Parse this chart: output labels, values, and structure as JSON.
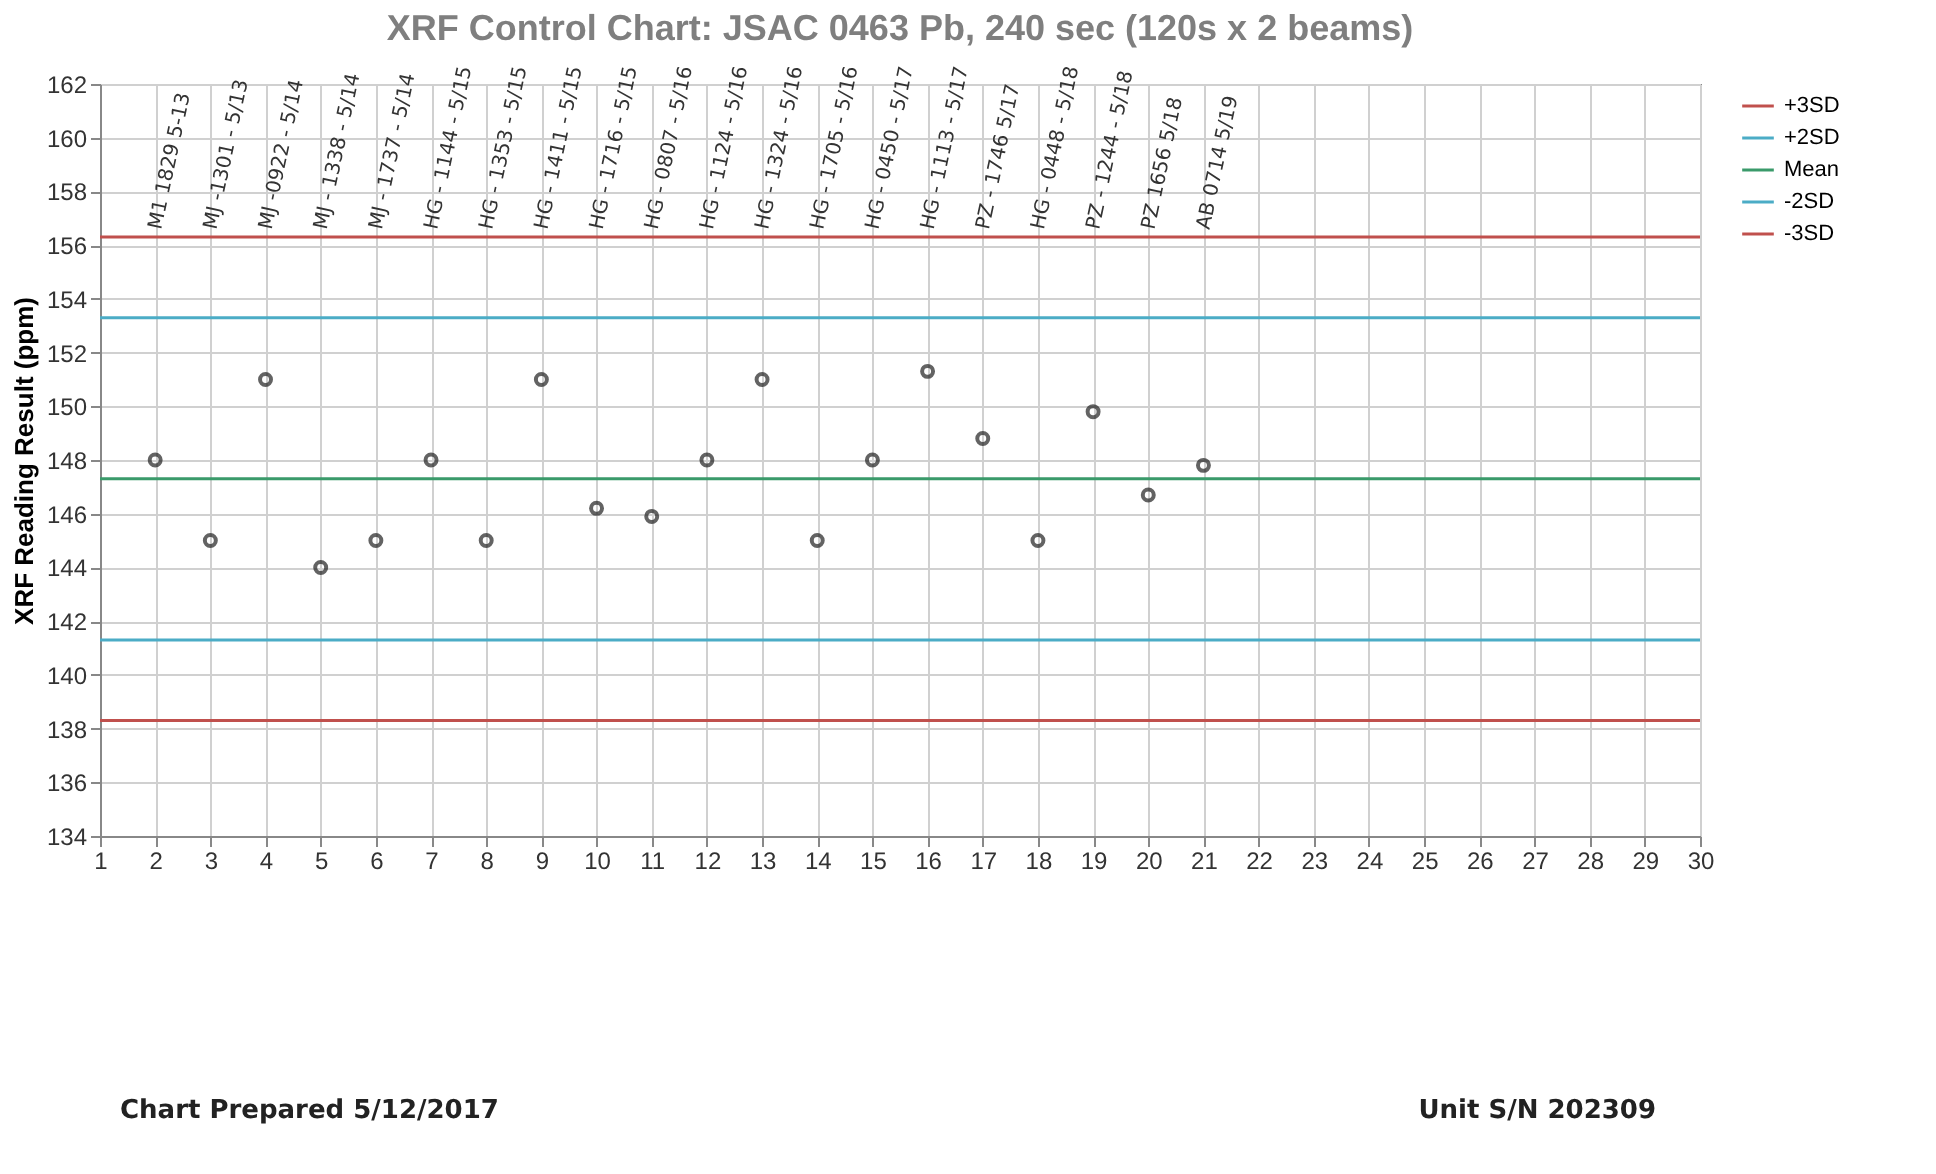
{
  "chart_data": {
    "type": "scatter",
    "title": "XRF Control Chart: JSAC 0463 Pb, 240 sec (120s x 2 beams)",
    "ylabel": "XRF Reading Result  (ppm)",
    "x": [
      2,
      3,
      4,
      5,
      6,
      7,
      8,
      9,
      10,
      11,
      12,
      13,
      14,
      15,
      16,
      17,
      18,
      19,
      20,
      21
    ],
    "series": [
      {
        "color": "#222222",
        "values": [
          148.0,
          145.0,
          151.0,
          144.0,
          145.0,
          148.0,
          145.0,
          151.0,
          146.2,
          145.9,
          148.0,
          151.0,
          145.0,
          148.0,
          151.3,
          148.8,
          145.0,
          149.8,
          146.7,
          147.8
        ]
      }
    ],
    "ref_lines": [
      {
        "axis": "y",
        "value": 156.3,
        "label": "+3SD",
        "color": "#c0504d"
      },
      {
        "axis": "y",
        "value": 153.3,
        "label": "+2SD",
        "color": "#4bacc6"
      },
      {
        "axis": "y",
        "value": 147.3,
        "label": "Mean",
        "color": "#3a9a6a"
      },
      {
        "axis": "y",
        "value": 141.3,
        "label": "-2SD",
        "color": "#4bacc6"
      },
      {
        "axis": "y",
        "value": 138.3,
        "label": "-3SD",
        "color": "#c0504d"
      }
    ],
    "xlim": [
      1,
      30
    ],
    "xticks": [
      1,
      2,
      3,
      4,
      5,
      6,
      7,
      8,
      9,
      10,
      11,
      12,
      13,
      14,
      15,
      16,
      17,
      18,
      19,
      20,
      21,
      22,
      23,
      24,
      25,
      26,
      27,
      28,
      29,
      30
    ],
    "ylim": [
      134,
      162
    ],
    "yticks": [
      134,
      136,
      138,
      140,
      142,
      144,
      146,
      148,
      150,
      152,
      154,
      156,
      158,
      160,
      162
    ],
    "grid": true,
    "legend": "right",
    "marker": "circle",
    "annotations": [
      {
        "text": "M1 1829 5-13",
        "x": 2,
        "y": 156.6
      },
      {
        "text": "MJ -1301 - 5/13",
        "x": 3,
        "y": 156.6
      },
      {
        "text": "MJ -0922 - 5/14",
        "x": 4,
        "y": 156.6
      },
      {
        "text": "MJ - 1338 - 5/14",
        "x": 5,
        "y": 156.6
      },
      {
        "text": "MJ - 1737 - 5/14",
        "x": 6,
        "y": 156.6
      },
      {
        "text": "HG - 1144 - 5/15",
        "x": 7,
        "y": 156.6
      },
      {
        "text": "HG - 1353 - 5/15",
        "x": 8,
        "y": 156.6
      },
      {
        "text": "HG - 1411 - 5/15",
        "x": 9,
        "y": 156.6
      },
      {
        "text": "HG - 1716 - 5/15",
        "x": 10,
        "y": 156.6
      },
      {
        "text": "HG - 0807 - 5/16",
        "x": 11,
        "y": 156.6
      },
      {
        "text": "HG - 1124 - 5/16",
        "x": 12,
        "y": 156.6
      },
      {
        "text": "HG - 1324 - 5/16",
        "x": 13,
        "y": 156.6
      },
      {
        "text": "HG - 1705 - 5/16",
        "x": 14,
        "y": 156.6
      },
      {
        "text": "HG - 0450 - 5/17",
        "x": 15,
        "y": 156.6
      },
      {
        "text": "HG - 1113 - 5/17",
        "x": 16,
        "y": 156.6
      },
      {
        "text": "PZ - 1746 5/17",
        "x": 17,
        "y": 156.6
      },
      {
        "text": "HG - 0448 - 5/18",
        "x": 18,
        "y": 156.6
      },
      {
        "text": "PZ - 1244 - 5/18",
        "x": 19,
        "y": 156.6
      },
      {
        "text": "PZ 1656 5/18",
        "x": 20,
        "y": 156.6
      },
      {
        "text": "AB 0714 5/19",
        "x": 21,
        "y": 156.6
      },
      "Chart Prepared 5/12/2017",
      "Unit S/N 202309"
    ]
  }
}
